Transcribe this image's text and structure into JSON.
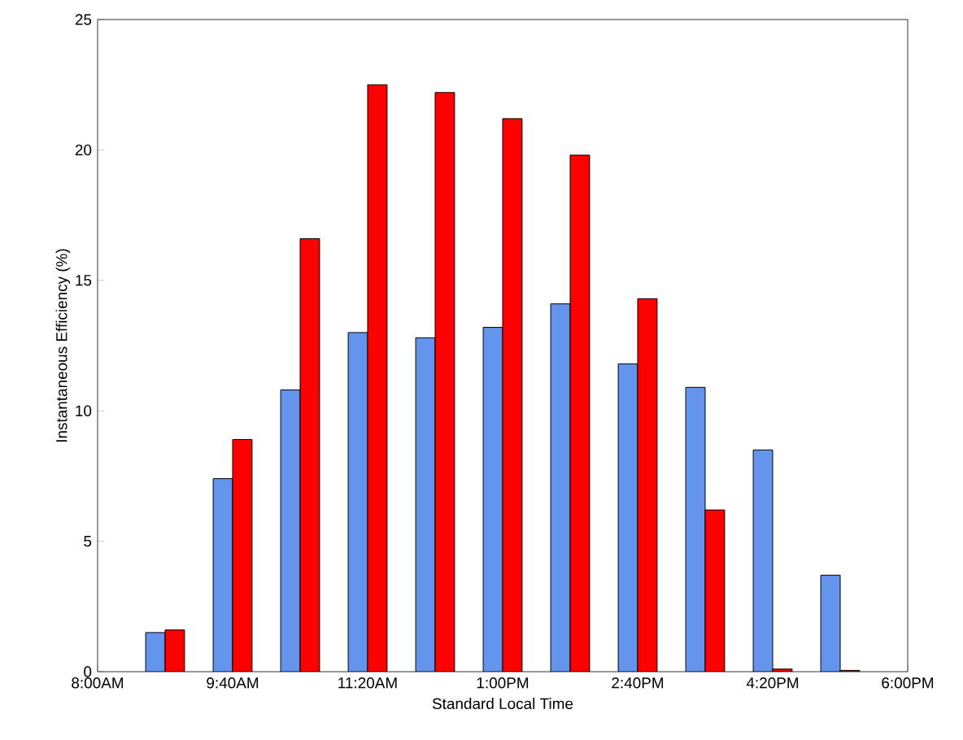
{
  "chart_data": {
    "type": "bar",
    "xlabel": "Standard Local Time",
    "ylabel": "Instantaneous Efficiency (%)",
    "x": [
      8.8333,
      9.6667,
      10.5,
      11.3333,
      12.1667,
      13,
      13.8333,
      14.6667,
      15.5,
      16.3333,
      17.1667
    ],
    "series": [
      {
        "color": "#6495ed",
        "values": [
          1.5,
          7.4,
          10.8,
          13.0,
          12.8,
          13.2,
          14.1,
          11.8,
          10.9,
          8.5,
          3.7
        ]
      },
      {
        "color": "#ff0000",
        "values": [
          1.6,
          8.9,
          16.6,
          22.5,
          22.2,
          21.2,
          19.8,
          14.3,
          6.2,
          0.1,
          0.05
        ]
      }
    ],
    "xlim": [
      8,
      18
    ],
    "xticks": [
      {
        "value": 8,
        "label": "8:00AM"
      },
      {
        "value": 9.6667,
        "label": "9:40AM"
      },
      {
        "value": 11.3333,
        "label": "11:20AM"
      },
      {
        "value": 13,
        "label": "1:00PM"
      },
      {
        "value": 14.6667,
        "label": "2:40PM"
      },
      {
        "value": 16.3333,
        "label": "4:20PM"
      },
      {
        "value": 18,
        "label": "6:00PM"
      }
    ],
    "ylim": [
      0,
      25
    ],
    "yticks": [
      0,
      5,
      10,
      15,
      20,
      25
    ],
    "grid": false
  }
}
